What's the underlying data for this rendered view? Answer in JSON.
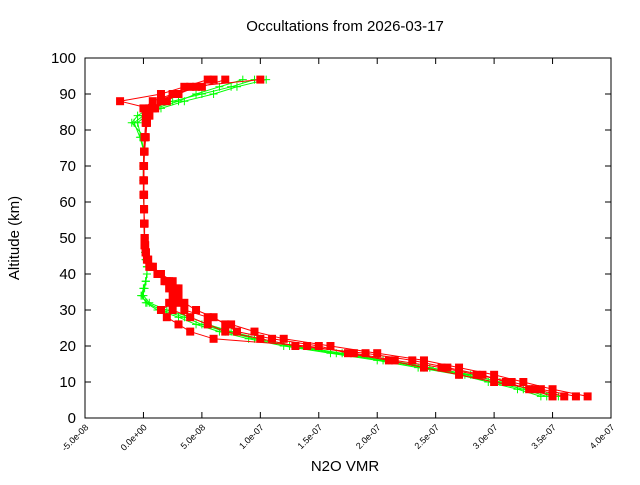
{
  "chart_data": {
    "type": "line",
    "title": "Occultations from 2026-03-17",
    "xlabel": "N2O VMR",
    "ylabel": "Altitude (km)",
    "xlim": [
      -5e-08,
      4e-07
    ],
    "ylim": [
      0,
      100
    ],
    "xticks": [
      "-5.0e-08",
      "0.0e+00",
      "5.0e-08",
      "1.0e-07",
      "1.5e-07",
      "2.0e-07",
      "2.5e-07",
      "3.0e-07",
      "3.5e-07",
      "4.0e-07"
    ],
    "xtick_values": [
      -5e-08,
      0,
      5e-08,
      1e-07,
      1.5e-07,
      2e-07,
      2.5e-07,
      3e-07,
      3.5e-07,
      4e-07
    ],
    "yticks": [
      "0",
      "10",
      "20",
      "30",
      "40",
      "50",
      "60",
      "70",
      "80",
      "90",
      "100"
    ],
    "ytick_values": [
      0,
      10,
      20,
      30,
      40,
      50,
      60,
      70,
      80,
      90,
      100
    ],
    "grid": false,
    "altitude": [
      6,
      8,
      10,
      12,
      14,
      16,
      18,
      20,
      22,
      24,
      26,
      28,
      30,
      32,
      34,
      36,
      38,
      40,
      42,
      44,
      46,
      48,
      50,
      54,
      58,
      62,
      66,
      70,
      74,
      78,
      82,
      84,
      86,
      88,
      90,
      92,
      94
    ],
    "series": [
      {
        "color": "#00ff00",
        "marker": "plus",
        "profiles": [
          [
            3.55e-07,
            3.3e-07,
            3.05e-07,
            2.8e-07,
            2.45e-07,
            2.1e-07,
            1.7e-07,
            1.3e-07,
            1e-07,
            7.5e-08,
            5.5e-08,
            4e-08,
            2e-08,
            5e-09,
            0,
            0,
            2e-09,
            3e-09,
            3e-09,
            2e-09,
            1.5e-09,
            1e-09,
            1e-09,
            5e-10,
            5e-10,
            5e-10,
            0,
            0,
            5e-10,
            1e-09,
            -1e-08,
            -5e-09,
            5e-09,
            2.5e-08,
            5e-08,
            7.5e-08,
            9.5e-08
          ],
          [
            3.45e-07,
            3.25e-07,
            3e-07,
            2.75e-07,
            2.4e-07,
            2.05e-07,
            1.65e-07,
            1.25e-07,
            9.5e-08,
            7e-08,
            5e-08,
            3.5e-08,
            1.5e-08,
            3e-09,
            -2e-09,
            0,
            2e-09,
            3e-09,
            3e-09,
            2e-09,
            1.5e-09,
            1e-09,
            1e-09,
            5e-10,
            5e-10,
            5e-10,
            0,
            0,
            5e-10,
            -3e-09,
            -8e-09,
            0,
            1.5e-08,
            3.5e-08,
            6e-08,
            8e-08,
            1.05e-07
          ],
          [
            3.4e-07,
            3.2e-07,
            2.95e-07,
            2.7e-07,
            2.35e-07,
            2e-07,
            1.6e-07,
            1.2e-07,
            9e-08,
            6.5e-08,
            4.5e-08,
            3e-08,
            1.2e-08,
            2e-09,
            -1e-09,
            1e-09,
            2e-09,
            3e-09,
            3e-09,
            2e-09,
            1.5e-09,
            1e-09,
            1e-09,
            5e-10,
            5e-10,
            0,
            0,
            0,
            5e-10,
            -2e-09,
            -5e-09,
            2e-09,
            1e-08,
            3e-08,
            4.5e-08,
            6.5e-08,
            8.5e-08
          ]
        ]
      },
      {
        "color": "#ff0000",
        "marker": "filled-square",
        "profiles": [
          [
            3.8e-07,
            3.5e-07,
            3.25e-07,
            3e-07,
            2.7e-07,
            2.4e-07,
            2e-07,
            1.6e-07,
            1.2e-07,
            9.5e-08,
            7.5e-08,
            5.5e-08,
            3.5e-08,
            3e-08,
            2.8e-08,
            2.5e-08,
            2e-08,
            1.2e-08,
            6e-09,
            3e-09,
            2e-09,
            1.5e-09,
            1e-09,
            1e-09,
            5e-10,
            5e-10,
            5e-10,
            5e-10,
            5e-10,
            1e-09,
            2e-09,
            5e-09,
            1e-08,
            2e-08,
            3e-08,
            4.5e-08,
            6e-08
          ],
          [
            3.7e-07,
            3.4e-07,
            3.15e-07,
            2.85e-07,
            2.55e-07,
            2.15e-07,
            1.8e-07,
            1.4e-07,
            6e-08,
            4e-08,
            3e-08,
            2e-08,
            1.5e-08,
            2.5e-08,
            3e-08,
            2.8e-08,
            2.2e-08,
            1.4e-08,
            8e-09,
            4e-09,
            2e-09,
            1e-09,
            1e-09,
            5e-10,
            5e-10,
            0,
            0,
            5e-10,
            1e-09,
            2e-09,
            3e-09,
            2e-09,
            0,
            8e-09,
            2.5e-08,
            4e-08,
            1e-07
          ],
          [
            3.6e-07,
            3.35e-07,
            3e-07,
            2.7e-07,
            2.4e-07,
            2.1e-07,
            1.75e-07,
            1.5e-07,
            1.1e-07,
            8e-08,
            7e-08,
            6e-08,
            4.5e-08,
            3.5e-08,
            3e-08,
            3e-08,
            2.5e-08,
            1.5e-08,
            8e-09,
            4e-09,
            2e-09,
            1e-09,
            1e-09,
            5e-10,
            5e-10,
            5e-10,
            0,
            0,
            5e-10,
            1e-09,
            2e-09,
            3e-09,
            5e-09,
            -2e-08,
            1.5e-08,
            3.5e-08,
            5.5e-08
          ],
          [
            3.5e-07,
            3.3e-07,
            3.1e-07,
            2.9e-07,
            2.6e-07,
            2.3e-07,
            1.9e-07,
            1.3e-07,
            1e-07,
            7e-08,
            5.5e-08,
            4e-08,
            2.5e-08,
            2.2e-08,
            2.5e-08,
            2.2e-08,
            1.8e-08,
            1.2e-08,
            5e-09,
            3e-09,
            2e-09,
            1e-09,
            1e-09,
            5e-10,
            5e-10,
            5e-10,
            0,
            0,
            5e-10,
            1e-09,
            3e-09,
            5e-09,
            8e-09,
            1.5e-08,
            2.5e-08,
            5e-08,
            7e-08
          ]
        ]
      }
    ]
  }
}
